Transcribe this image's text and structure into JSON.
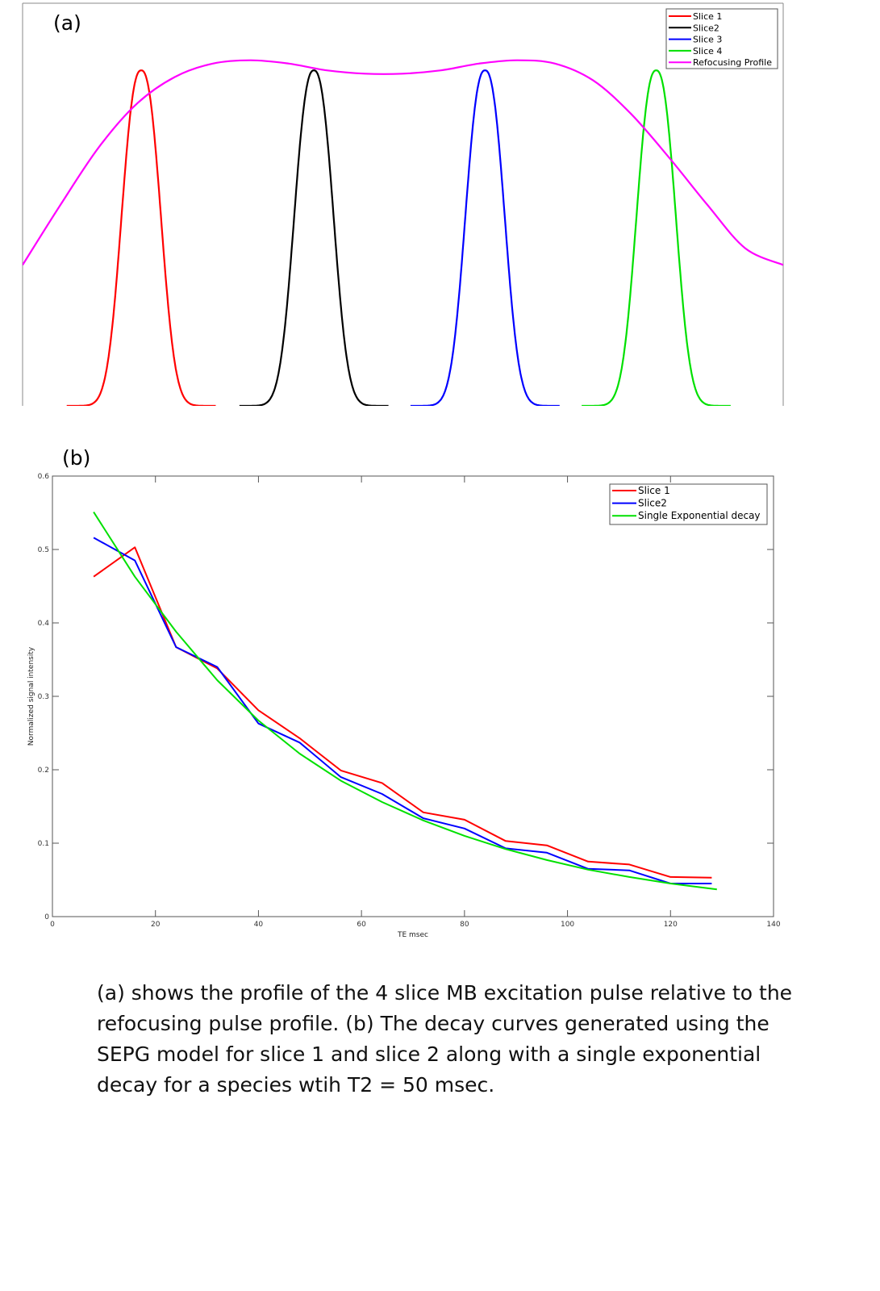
{
  "chart_data": [
    {
      "type": "line",
      "panel_label": "(a)",
      "title": "",
      "xlabel": "",
      "ylabel": "",
      "axes_visible": false,
      "grid": false,
      "legend_position": "top-right",
      "description_note": "Excitation slice profiles (Gaussian-like) and refocusing pulse profile; arbitrary units",
      "xlim": [
        0,
        1
      ],
      "ylim": [
        0,
        1.2
      ],
      "slices": [
        {
          "name": "Slice 1",
          "color": "#ff0000",
          "center": 0.156,
          "width": 0.0245,
          "peak": 1.0
        },
        {
          "name": "Slice2",
          "color": "#000000",
          "center": 0.383,
          "width": 0.0245,
          "peak": 1.0
        },
        {
          "name": "Slice 3",
          "color": "#0000ff",
          "center": 0.608,
          "width": 0.0245,
          "peak": 1.0
        },
        {
          "name": "Slice 4",
          "color": "#00e000",
          "center": 0.833,
          "width": 0.0245,
          "peak": 1.0
        }
      ],
      "refocusing": {
        "name": "Refocusing Profile",
        "color": "#ff00ff",
        "x": [
          0.0,
          0.05,
          0.1,
          0.15,
          0.2,
          0.25,
          0.3,
          0.35,
          0.4,
          0.45,
          0.5,
          0.55,
          0.6,
          0.65,
          0.7,
          0.75,
          0.8,
          0.85,
          0.9,
          0.95,
          1.0
        ],
        "values": [
          0.42,
          0.6,
          0.77,
          0.9,
          0.98,
          1.02,
          1.03,
          1.02,
          1.0,
          0.99,
          0.99,
          1.0,
          1.02,
          1.03,
          1.02,
          0.97,
          0.87,
          0.74,
          0.6,
          0.47,
          0.42
        ]
      }
    },
    {
      "type": "line",
      "panel_label": "(b)",
      "title": "",
      "xlabel": "TE msec",
      "ylabel": "Normalized signal intensity",
      "xlim": [
        0,
        140
      ],
      "ylim": [
        0,
        0.6
      ],
      "xticks": [
        0,
        20,
        40,
        60,
        80,
        100,
        120,
        140
      ],
      "yticks": [
        0,
        0.1,
        0.2,
        0.3,
        0.4,
        0.5,
        0.6
      ],
      "grid": false,
      "legend_position": "top-right",
      "x": [
        8,
        16,
        24,
        32,
        40,
        48,
        56,
        64,
        72,
        80,
        88,
        96,
        104,
        112,
        120,
        128
      ],
      "series": [
        {
          "name": "Slice 1",
          "color": "#ff0000",
          "values": [
            0.463,
            0.503,
            0.367,
            0.338,
            0.281,
            0.243,
            0.199,
            0.182,
            0.142,
            0.132,
            0.103,
            0.097,
            0.075,
            0.071,
            0.054,
            0.053
          ]
        },
        {
          "name": "Slice2",
          "color": "#0000ff",
          "values": [
            0.516,
            0.485,
            0.367,
            0.34,
            0.263,
            0.237,
            0.19,
            0.167,
            0.134,
            0.12,
            0.093,
            0.087,
            0.065,
            0.063,
            0.045,
            0.045
          ]
        },
        {
          "name": "Single Exponential decay",
          "color": "#00e000",
          "x": [
            8,
            16,
            24,
            32,
            40,
            48,
            56,
            64,
            72,
            80,
            88,
            96,
            104,
            112,
            120,
            129
          ],
          "values": [
            0.551,
            0.463,
            0.388,
            0.322,
            0.267,
            0.222,
            0.185,
            0.156,
            0.131,
            0.11,
            0.092,
            0.077,
            0.064,
            0.054,
            0.045,
            0.037
          ]
        }
      ]
    }
  ],
  "caption": "(a) shows the profile of the 4 slice MB excitation pulse relative to the refocusing pulse profile. (b) The decay curves generated using the SEPG model for slice 1 and slice 2 along with a single exponential decay for a species wtih T2 = 50 msec."
}
